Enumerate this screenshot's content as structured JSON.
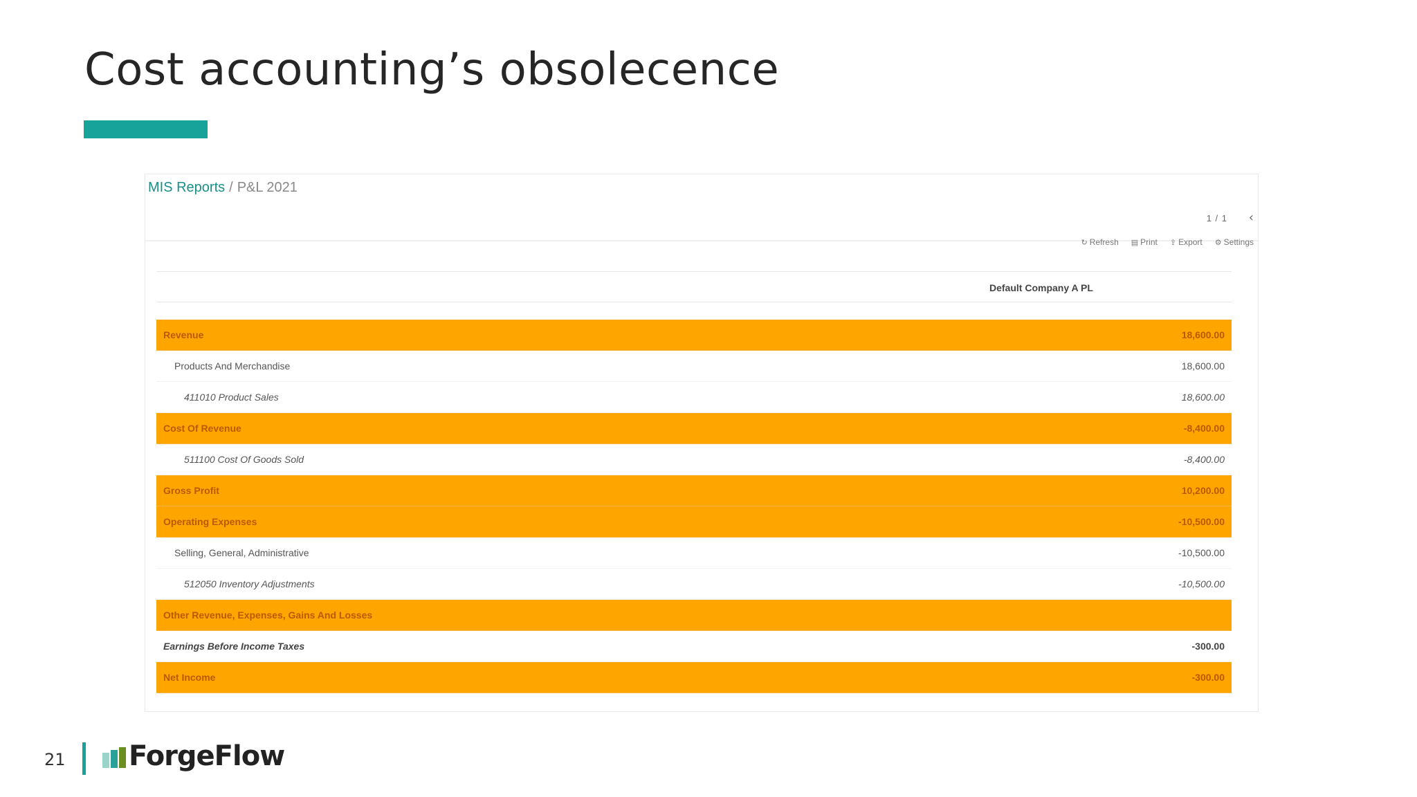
{
  "slide": {
    "title": "Cost accounting’s obsolecence",
    "page_number": "21",
    "logo_text": "ForgeFlow",
    "accent_color": "#17a39a"
  },
  "app": {
    "breadcrumb": {
      "parent": "MIS Reports",
      "separator": "/",
      "current": "P&L 2021"
    },
    "pager": "1 / 1",
    "toolbar": {
      "refresh": "Refresh",
      "print": "Print",
      "export": "Export",
      "settings": "Settings"
    },
    "column_header": "Default Company A PL",
    "highlight_color": "#ffa500",
    "rows": [
      {
        "label": "Revenue",
        "value": "18,600.00",
        "style": "hl"
      },
      {
        "label": "Products And Merchandise",
        "value": "18,600.00",
        "style": "lvl1"
      },
      {
        "label": "411010 Product Sales",
        "value": "18,600.00",
        "style": "lvl2"
      },
      {
        "label": "Cost Of Revenue",
        "value": "-8,400.00",
        "style": "hl"
      },
      {
        "label": "511100 Cost Of Goods Sold",
        "value": "-8,400.00",
        "style": "lvl2"
      },
      {
        "label": "Gross Profit",
        "value": "10,200.00",
        "style": "hl"
      },
      {
        "label": "Operating Expenses",
        "value": "-10,500.00",
        "style": "hl"
      },
      {
        "label": "Selling, General, Administrative",
        "value": "-10,500.00",
        "style": "lvl1"
      },
      {
        "label": "512050 Inventory Adjustments",
        "value": "-10,500.00",
        "style": "lvl2"
      },
      {
        "label": "Other Revenue, Expenses, Gains And Losses",
        "value": "",
        "style": "hl"
      },
      {
        "label": "Earnings Before Income Taxes",
        "value": "-300.00",
        "style": "total"
      },
      {
        "label": "Net Income",
        "value": "-300.00",
        "style": "hl"
      }
    ]
  }
}
